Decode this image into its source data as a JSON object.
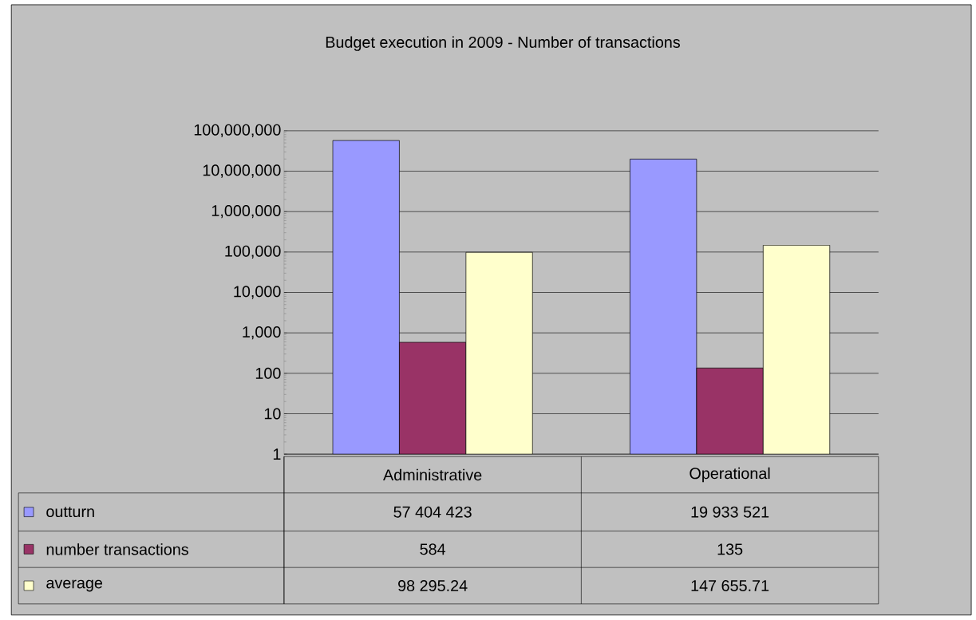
{
  "chart_data": {
    "type": "bar",
    "title": "Budget execution in 2009 - Number of transactions",
    "categories": [
      "Administrative",
      "Operational"
    ],
    "series": [
      {
        "name": "outturn",
        "color": "#9999ff",
        "values": [
          57404423,
          19933521
        ],
        "value_labels": [
          "57 404 423",
          "19 933 521"
        ]
      },
      {
        "name": "number transactions",
        "color": "#993366",
        "values": [
          584,
          135
        ],
        "value_labels": [
          "584",
          "135"
        ]
      },
      {
        "name": "average",
        "color": "#ffffcc",
        "values": [
          98295.24,
          147655.71
        ],
        "value_labels": [
          "98 295.24",
          "147 655.71"
        ]
      }
    ],
    "log": true,
    "ylim": [
      1,
      100000000
    ],
    "yticks": [
      {
        "value": 1,
        "label": "1"
      },
      {
        "value": 10,
        "label": "10"
      },
      {
        "value": 100,
        "label": "100"
      },
      {
        "value": 1000,
        "label": "1,000"
      },
      {
        "value": 10000,
        "label": "10,000"
      },
      {
        "value": 100000,
        "label": "100,000"
      },
      {
        "value": 1000000,
        "label": "1,000,000"
      },
      {
        "value": 10000000,
        "label": "10,000,000"
      },
      {
        "value": 100000000,
        "label": "100,000,000"
      }
    ],
    "grid": "y",
    "legend": "bottom"
  }
}
